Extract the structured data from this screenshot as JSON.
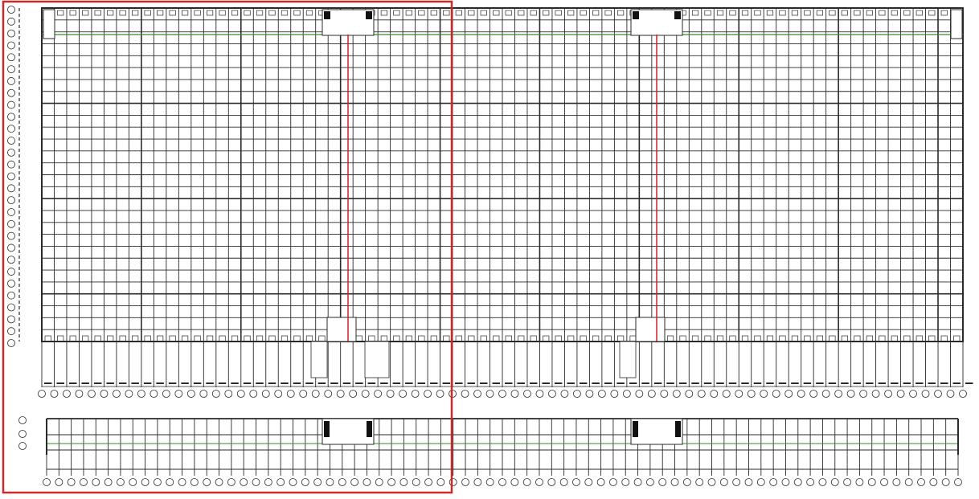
{
  "drawing": {
    "type": "architectural-floor-plan",
    "colors": {
      "grid": "#2a2a2a",
      "grid_light": "#9a9a9a",
      "green_line": "#3a8a2a",
      "red_line": "#d02020",
      "highlight_frame": "#cc2a2a",
      "background": "#ffffff"
    },
    "highlight": "left-section-frame"
  }
}
